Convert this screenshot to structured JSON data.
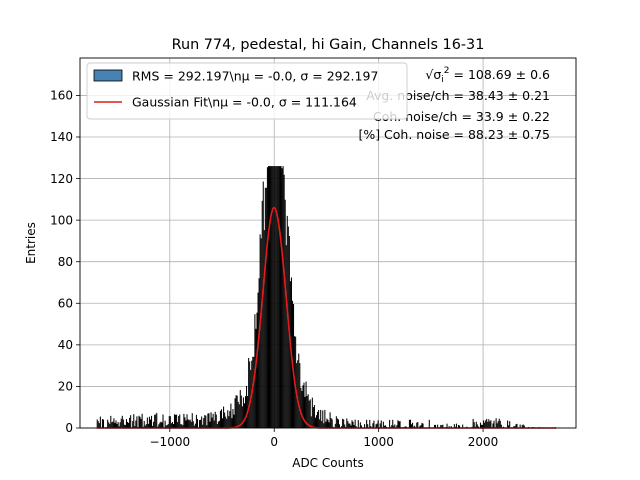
{
  "chart_data": {
    "type": "bar",
    "title": "Run 774, pedestal, hi Gain, Channels 16-31",
    "xlabel": "ADC Counts",
    "ylabel": "Entries",
    "xlim": [
      -1860,
      2890
    ],
    "ylim": [
      0,
      178
    ],
    "xticks": [
      -1000,
      0,
      1000,
      2000
    ],
    "xtick_labels": [
      "−1000",
      "0",
      "1000",
      "2000"
    ],
    "yticks": [
      0,
      20,
      40,
      60,
      80,
      100,
      120,
      140,
      160
    ],
    "ytick_labels": [
      "0",
      "20",
      "40",
      "60",
      "80",
      "100",
      "120",
      "140",
      "160"
    ],
    "grid": true,
    "legend_position": "top-left",
    "histogram": {
      "name": "RMS = 292.197\\nμ = -0.0, σ = 292.197",
      "color": "#000000",
      "legend_color": "#4682b4",
      "range": [
        -1700,
        2700
      ],
      "peak": 126,
      "peak_x": 0,
      "core_sigma": 111.164
    },
    "fit": {
      "name": "Gaussian Fit\\nμ = -0.0, σ = 111.164",
      "mu": 0.0,
      "sigma": 111.164,
      "amplitude": 106,
      "range": [
        -1700,
        2700
      ],
      "color": "#e41a1c"
    },
    "annotations": [
      {
        "prefix": "√σ",
        "sub": "i",
        "sup": "2",
        "text": " = 108.69 ± 0.6"
      },
      {
        "text": "Avg. noise/ch = 38.43 ± 0.21"
      },
      {
        "text": "Coh. noise/ch = 33.9 ± 0.22"
      },
      {
        "text": "[%] Coh. noise = 88.23 ± 0.75"
      }
    ]
  }
}
